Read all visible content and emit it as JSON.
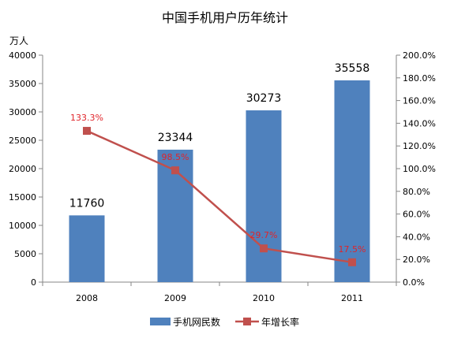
{
  "chart_data": {
    "type": "bar",
    "title": "中国手机用户历年统计",
    "ylabel_left": "万人",
    "categories": [
      "2008",
      "2009",
      "2010",
      "2011"
    ],
    "left_axis": {
      "range": [
        0,
        40000
      ],
      "ticks": [
        "0",
        "5000",
        "10000",
        "15000",
        "20000",
        "25000",
        "30000",
        "35000",
        "40000"
      ]
    },
    "right_axis": {
      "range": [
        0,
        200
      ],
      "ticks": [
        "0.0%",
        "20.0%",
        "40.0%",
        "60.0%",
        "80.0%",
        "100.0%",
        "120.0%",
        "140.0%",
        "160.0%",
        "180.0%",
        "200.0%"
      ]
    },
    "series": [
      {
        "name": "手机网民数",
        "type": "bar",
        "axis": "left",
        "color": "#4f81bd",
        "values": [
          11760,
          23344,
          30273,
          35558
        ],
        "labels": [
          "11760",
          "23344",
          "30273",
          "35558"
        ]
      },
      {
        "name": "年增长率",
        "type": "line",
        "axis": "right",
        "color": "#c0504d",
        "label_color": "#e0242a",
        "values": [
          133.3,
          98.5,
          29.7,
          17.5
        ],
        "labels": [
          "133.3%",
          "98.5%",
          "29.7%",
          "17.5%"
        ]
      }
    ],
    "grid": false,
    "legend": "bottom"
  }
}
